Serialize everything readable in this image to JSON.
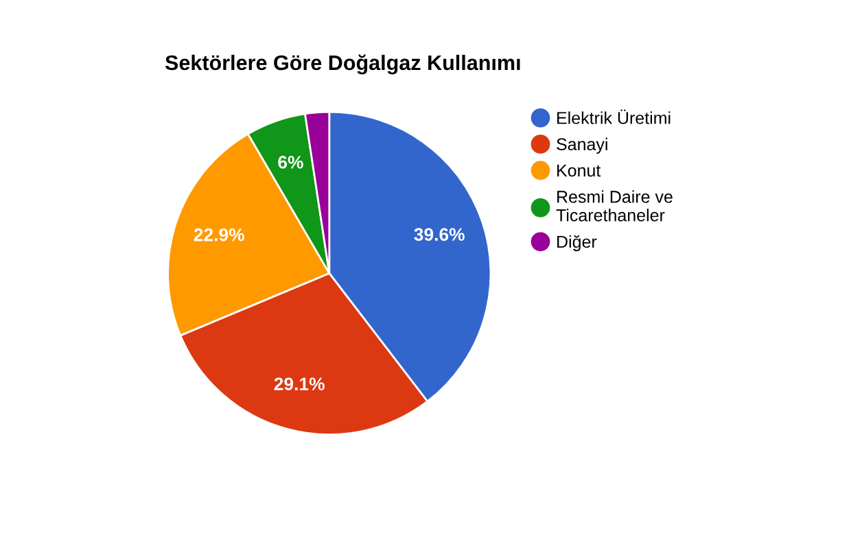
{
  "chart_data": {
    "type": "pie",
    "title": "Sektörlere Göre Doğalgaz Kullanımı",
    "categories": [
      "Elektrik Üretimi",
      "Sanayi",
      "Konut",
      "Resmi Daire ve\nTicarethaneler",
      "Diğer"
    ],
    "values": [
      39.6,
      29.1,
      22.9,
      6,
      2.4
    ],
    "colors": [
      "#3366cc",
      "#dc3912",
      "#ff9900",
      "#109618",
      "#990099"
    ],
    "value_labels": [
      "39.6%",
      "29.1%",
      "22.9%",
      "6%",
      null
    ],
    "legend": "right"
  }
}
